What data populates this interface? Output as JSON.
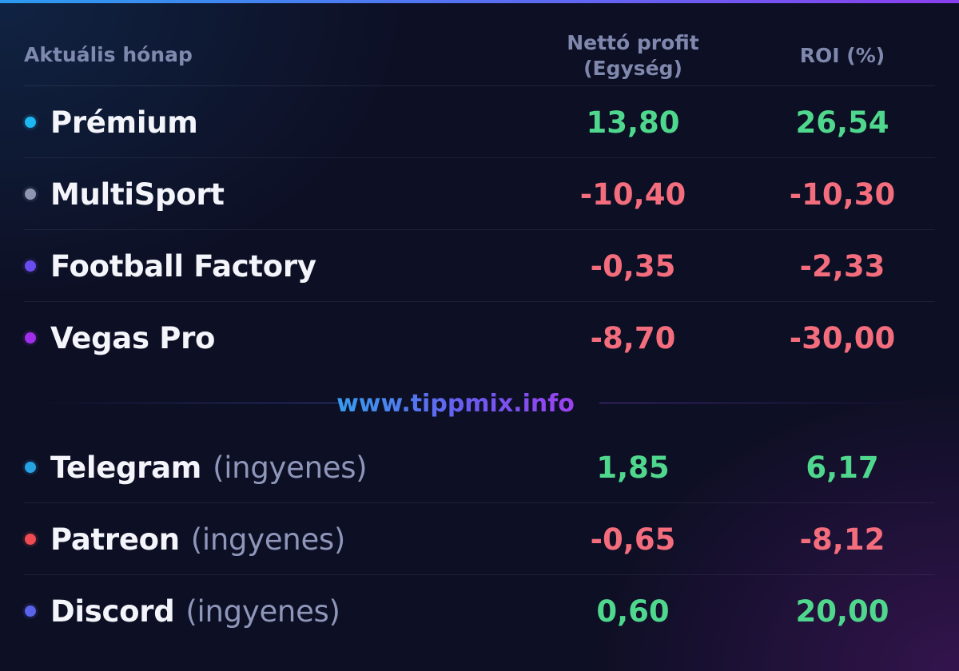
{
  "header": {
    "period_label": "Aktuális hónap",
    "profit_label_line1": "Nettó profit",
    "profit_label_line2": "(Egység)",
    "roi_label": "ROI (%)"
  },
  "colors": {
    "positive": "#4fd88d",
    "negative": "#f36d7d",
    "accent_gradient": [
      "#2fa6ef",
      "#6a5bf0",
      "#a33df0"
    ]
  },
  "paid_rows": [
    {
      "name": "Prémium",
      "sub": "",
      "profit": "13,80",
      "roi": "26,54",
      "profit_sign": "pos",
      "roi_sign": "pos",
      "dot_color": "#1db8f2"
    },
    {
      "name": "MultiSport",
      "sub": "",
      "profit": "-10,40",
      "roi": "-10,30",
      "profit_sign": "neg",
      "roi_sign": "neg",
      "dot_color": "#8f96b3"
    },
    {
      "name": "Football Factory",
      "sub": "",
      "profit": "-0,35",
      "roi": "-2,33",
      "profit_sign": "neg",
      "roi_sign": "neg",
      "dot_color": "#6a4df0"
    },
    {
      "name": "Vegas Pro",
      "sub": "",
      "profit": "-8,70",
      "roi": "-30,00",
      "profit_sign": "neg",
      "roi_sign": "neg",
      "dot_color": "#a12ee8"
    }
  ],
  "watermark": "www.tippmix.info",
  "free_rows": [
    {
      "name": "Telegram",
      "sub": "(ingyenes)",
      "profit": "1,85",
      "roi": "6,17",
      "profit_sign": "pos",
      "roi_sign": "pos",
      "dot_color": "#27a3e3"
    },
    {
      "name": "Patreon",
      "sub": "(ingyenes)",
      "profit": "-0,65",
      "roi": "-8,12",
      "profit_sign": "neg",
      "roi_sign": "neg",
      "dot_color": "#f04a52"
    },
    {
      "name": "Discord",
      "sub": "(ingyenes)",
      "profit": "0,60",
      "roi": "20,00",
      "profit_sign": "pos",
      "roi_sign": "pos",
      "dot_color": "#5a63ea"
    }
  ]
}
